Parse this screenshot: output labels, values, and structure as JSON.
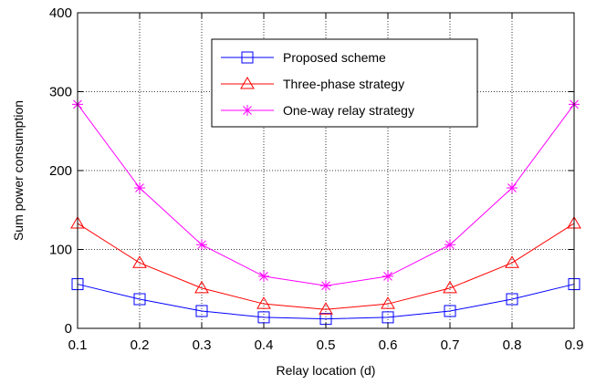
{
  "chart_data": {
    "type": "line",
    "title": "",
    "xlabel": "Relay location (d)",
    "ylabel": "Sum power consumption",
    "xlim": [
      0.1,
      0.9
    ],
    "ylim": [
      0,
      400
    ],
    "x": [
      0.1,
      0.2,
      0.3,
      0.4,
      0.5,
      0.6,
      0.7,
      0.8,
      0.9
    ],
    "xticks": [
      "0.1",
      "0.2",
      "0.3",
      "0.4",
      "0.5",
      "0.6",
      "0.7",
      "0.8",
      "0.9"
    ],
    "yticks": [
      "0",
      "100",
      "200",
      "300",
      "400"
    ],
    "grid": true,
    "grid_style": "dotted",
    "legend_position": "top-right",
    "series": [
      {
        "name": "Proposed scheme",
        "color": "#0000ff",
        "marker": "square",
        "values": [
          56,
          37,
          22,
          14,
          12,
          14,
          22,
          37,
          56
        ]
      },
      {
        "name": "Three-phase strategy",
        "color": "#ff0000",
        "marker": "triangle",
        "values": [
          133,
          83,
          51,
          31,
          24,
          31,
          51,
          83,
          133
        ]
      },
      {
        "name": "One-way relay strategy",
        "color": "#ff00ff",
        "marker": "star",
        "values": [
          284,
          178,
          106,
          66,
          54,
          66,
          106,
          178,
          284
        ]
      }
    ]
  }
}
